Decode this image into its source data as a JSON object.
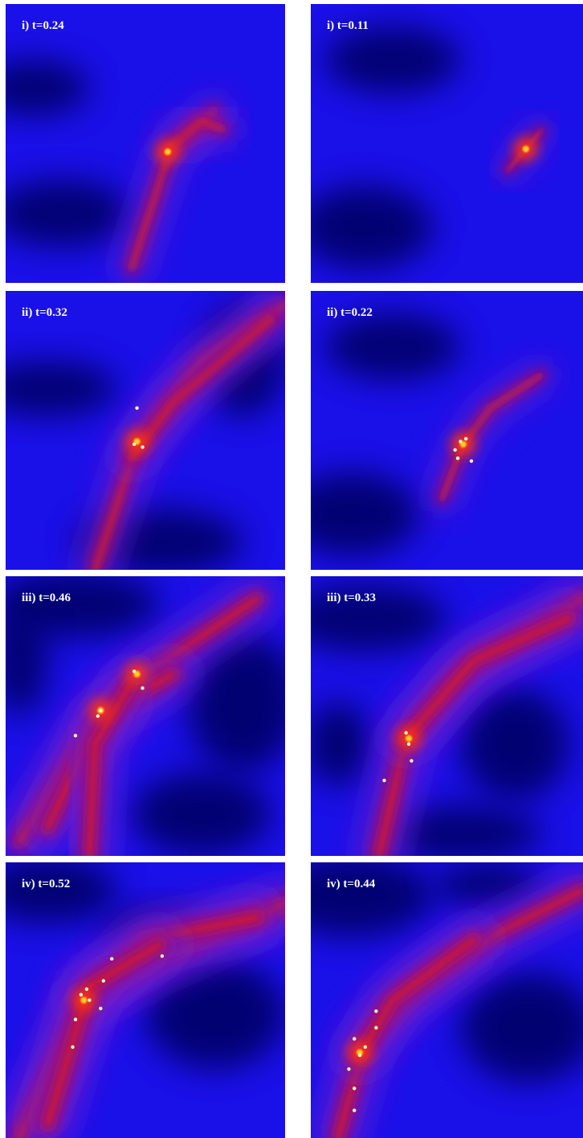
{
  "panels": [
    {
      "label": "i) t=0.24"
    },
    {
      "label": "i) t=0.11"
    },
    {
      "label": "ii) t=0.32"
    },
    {
      "label": "ii) t=0.22"
    },
    {
      "label": "iii) t=0.46"
    },
    {
      "label": "iii) t=0.33"
    },
    {
      "label": "iv) t=0.52"
    },
    {
      "label": "iv) t=0.44"
    }
  ]
}
